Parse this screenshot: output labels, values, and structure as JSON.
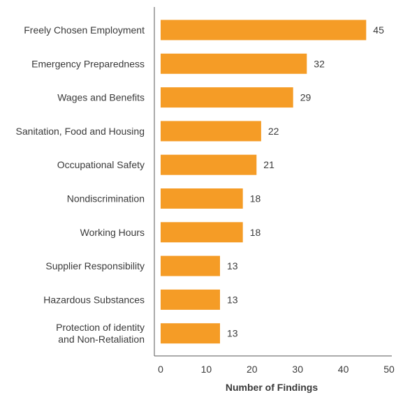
{
  "chart_data": {
    "type": "bar",
    "orientation": "horizontal",
    "categories": [
      "Freely Chosen Employment",
      "Emergency Preparedness",
      "Wages and Benefits",
      "Sanitation, Food and Housing",
      "Occupational Safety",
      "Nondiscrimination",
      "Working Hours",
      "Supplier Responsibility",
      "Hazardous Substances",
      "Protection of identity and Non-Retaliation"
    ],
    "category_lines": [
      [
        "Freely Chosen Employment"
      ],
      [
        "Emergency Preparedness"
      ],
      [
        "Wages and Benefits"
      ],
      [
        "Sanitation, Food and Housing"
      ],
      [
        "Occupational Safety"
      ],
      [
        "Nondiscrimination"
      ],
      [
        "Working Hours"
      ],
      [
        "Supplier Responsibility"
      ],
      [
        "Hazardous Substances"
      ],
      [
        "Protection of identity",
        "and Non-Retaliation"
      ]
    ],
    "values": [
      45,
      32,
      29,
      22,
      21,
      18,
      18,
      13,
      13,
      13
    ],
    "value_labels": [
      "45",
      "32",
      "29",
      "22",
      "21",
      "18",
      "18",
      "13",
      "13",
      "13"
    ],
    "title": "",
    "xlabel": "Number of Findings",
    "ylabel": "",
    "xlim": [
      0,
      50
    ],
    "x_ticks": [
      0,
      10,
      20,
      30,
      40,
      50
    ],
    "x_tick_labels": [
      "0",
      "10",
      "20",
      "30",
      "40",
      "50"
    ],
    "grid": false,
    "legend": "none",
    "bar_color": "#f59c26",
    "axis_color": "#555555",
    "text_color": "#3a3a3a"
  }
}
